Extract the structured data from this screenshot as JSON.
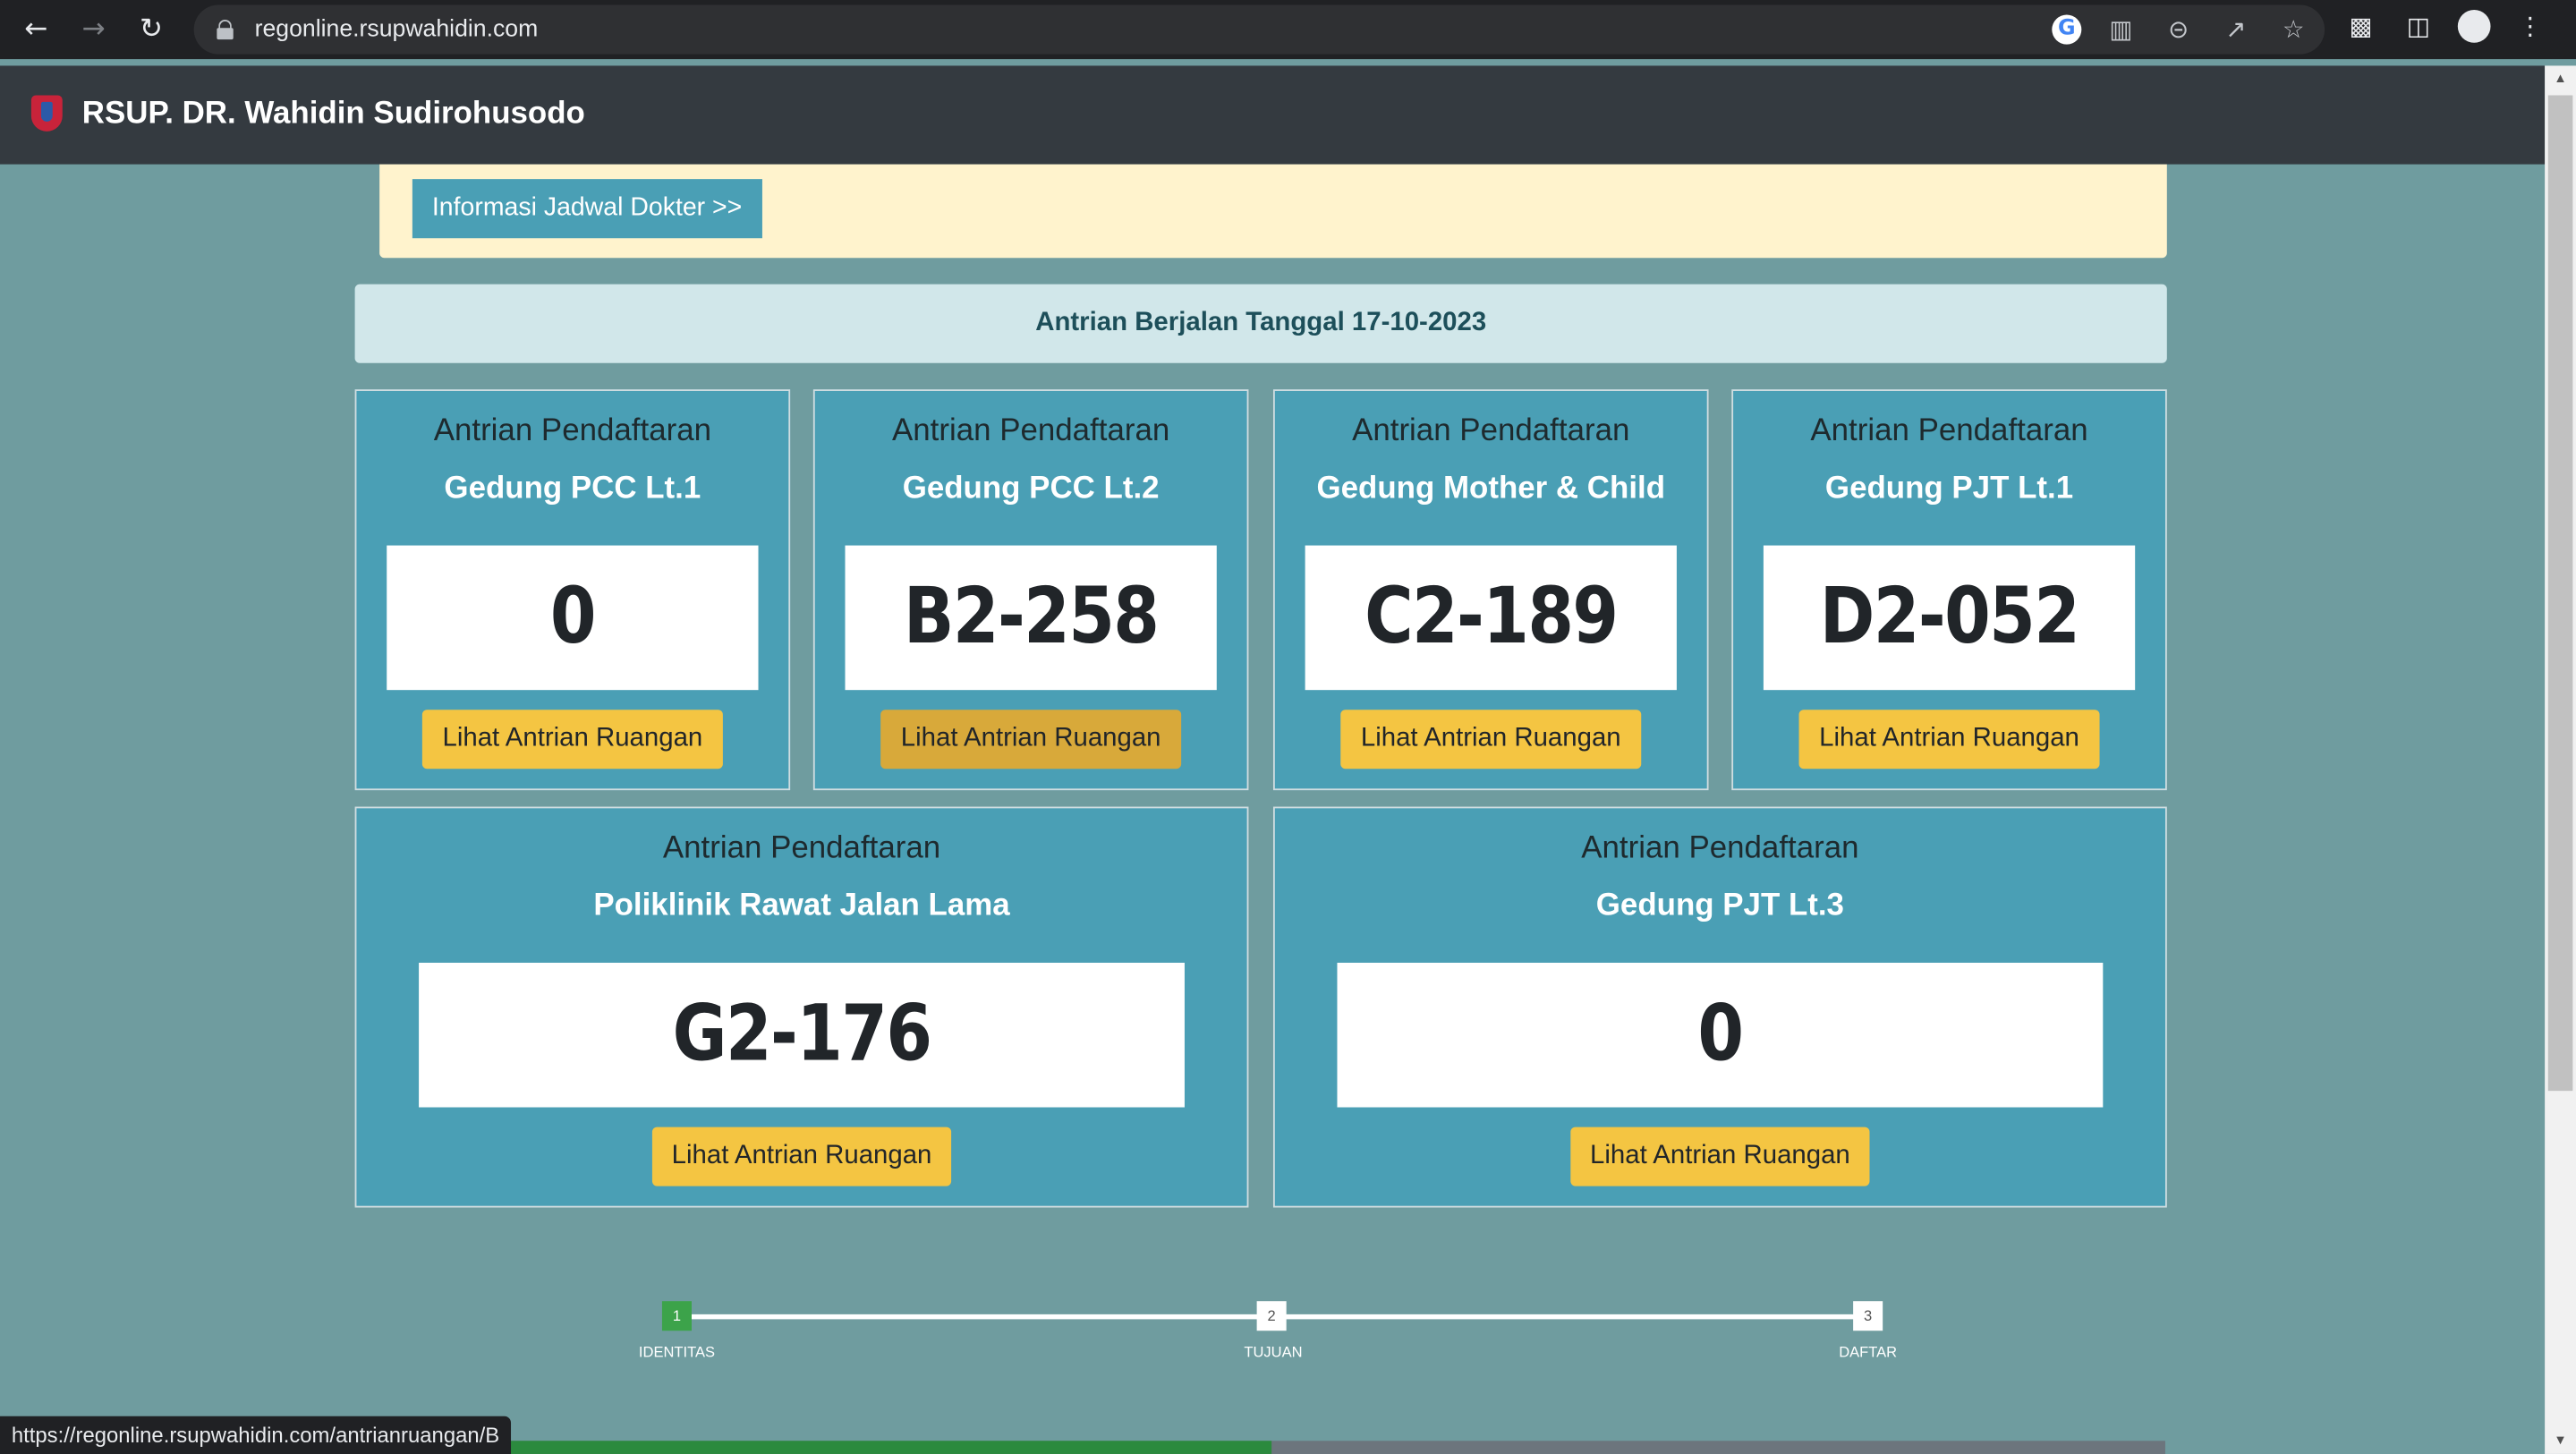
{
  "browser": {
    "url": "regonline.rsupwahidin.com",
    "status_url": "https://regonline.rsupwahidin.com/antrianruangan/B"
  },
  "app": {
    "brand": "RSUP. DR. Wahidin Sudirohusodo"
  },
  "info": {
    "schedule_button": "Informasi Jadwal Dokter >>"
  },
  "queue_header": "Antrian Berjalan Tanggal 17-10-2023",
  "cards": [
    {
      "title": "Antrian Pendaftaran",
      "location": "Gedung PCC Lt.1",
      "number": "0",
      "button": "Lihat Antrian Ruangan"
    },
    {
      "title": "Antrian Pendaftaran",
      "location": "Gedung PCC Lt.2",
      "number": "B2-258",
      "button": "Lihat Antrian Ruangan"
    },
    {
      "title": "Antrian Pendaftaran",
      "location": "Gedung Mother & Child",
      "number": "C2-189",
      "button": "Lihat Antrian Ruangan"
    },
    {
      "title": "Antrian Pendaftaran",
      "location": "Gedung PJT Lt.1",
      "number": "D2-052",
      "button": "Lihat Antrian Ruangan"
    },
    {
      "title": "Antrian Pendaftaran",
      "location": "Poliklinik Rawat Jalan Lama",
      "number": "G2-176",
      "button": "Lihat Antrian Ruangan"
    },
    {
      "title": "Antrian Pendaftaran",
      "location": "Gedung PJT Lt.3",
      "number": "0",
      "button": "Lihat Antrian Ruangan"
    }
  ],
  "stepper": [
    {
      "num": "1",
      "label": "IDENTITAS"
    },
    {
      "num": "2",
      "label": "TUJUAN"
    },
    {
      "num": "3",
      "label": "DAFTAR"
    }
  ],
  "colors": {
    "page_bg": "#6f9c9f",
    "card_accent": "#4a9fb5",
    "button_yellow": "#f4c542",
    "navbar": "#343a40",
    "step_active": "#3ca34a"
  },
  "icons": {
    "back": "arrow-left-icon",
    "forward": "arrow-right-icon",
    "reload": "reload-icon",
    "lock": "lock-icon",
    "google": "google-icon",
    "translate": "translate-icon",
    "zoom": "zoom-out-icon",
    "share": "share-icon",
    "bookmark": "star-icon",
    "extensions": "puzzle-icon",
    "sidepanel": "side-panel-icon",
    "profile": "profile-icon",
    "menu": "kebab-menu-icon"
  }
}
